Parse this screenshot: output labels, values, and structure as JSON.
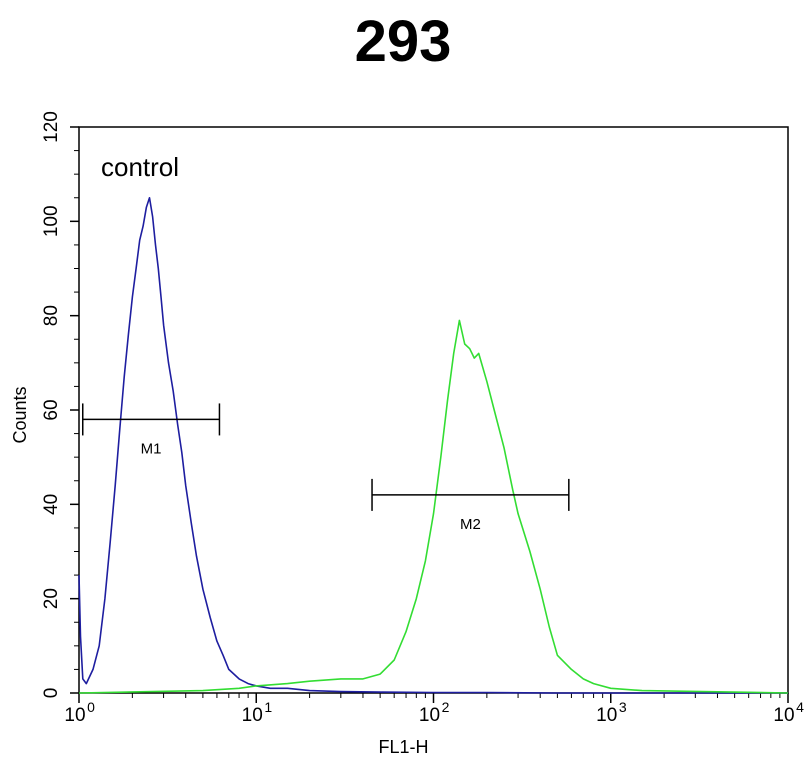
{
  "chart_data": {
    "type": "line",
    "title": "293",
    "xlabel": "FL1-H",
    "ylabel": "Counts",
    "x_scale": "log",
    "xlim": [
      1,
      10000
    ],
    "ylim": [
      0,
      120
    ],
    "x_ticks": [
      {
        "value": 1,
        "base": "10",
        "exp": "0"
      },
      {
        "value": 10,
        "base": "10",
        "exp": "1"
      },
      {
        "value": 100,
        "base": "10",
        "exp": "2"
      },
      {
        "value": 1000,
        "base": "10",
        "exp": "3"
      },
      {
        "value": 10000,
        "base": "10",
        "exp": "4"
      }
    ],
    "y_ticks": [
      0,
      20,
      40,
      60,
      80,
      100,
      120
    ],
    "grid": false,
    "annotations": [
      {
        "text": "control"
      }
    ],
    "gates": [
      {
        "label": "M1",
        "x_start": 1.05,
        "x_end": 6.2,
        "y": 58
      },
      {
        "label": "M2",
        "x_start": 45,
        "x_end": 580,
        "y": 42
      }
    ],
    "series": [
      {
        "color": "#1e1ea0",
        "x": [
          1.0,
          1.02,
          1.05,
          1.1,
          1.2,
          1.3,
          1.4,
          1.5,
          1.6,
          1.7,
          1.8,
          1.9,
          2.0,
          2.1,
          2.2,
          2.3,
          2.4,
          2.5,
          2.6,
          2.7,
          2.8,
          2.9,
          3.0,
          3.2,
          3.4,
          3.6,
          3.8,
          4.0,
          4.3,
          4.6,
          5.0,
          5.5,
          6.0,
          6.5,
          7.0,
          8.0,
          9.0,
          10,
          12,
          15,
          20,
          30,
          50,
          100,
          200,
          500,
          1000,
          10000
        ],
        "y": [
          25,
          12,
          3,
          2,
          5,
          10,
          20,
          32,
          44,
          56,
          67,
          76,
          84,
          90,
          96,
          99,
          103,
          105,
          101,
          95,
          90,
          84,
          78,
          70,
          64,
          57,
          51,
          44,
          36,
          29,
          22,
          16,
          11,
          8,
          5,
          3,
          2,
          1.5,
          1,
          1,
          0.5,
          0.3,
          0.2,
          0.1,
          0.1,
          0,
          0,
          0
        ]
      },
      {
        "color": "#33dd33",
        "x": [
          1,
          5,
          8,
          10,
          15,
          20,
          30,
          40,
          50,
          60,
          70,
          80,
          90,
          100,
          110,
          120,
          130,
          140,
          150,
          160,
          170,
          180,
          200,
          220,
          250,
          280,
          300,
          350,
          400,
          450,
          500,
          600,
          700,
          800,
          1000,
          1500,
          10000
        ],
        "y": [
          0,
          0.5,
          1,
          1.5,
          2,
          2.5,
          3,
          3,
          4,
          7,
          13,
          20,
          28,
          38,
          50,
          62,
          72,
          79,
          74,
          73,
          71,
          72,
          66,
          60,
          52,
          43,
          38,
          30,
          22,
          14,
          8,
          5,
          3,
          2,
          1,
          0.5,
          0
        ]
      }
    ]
  }
}
